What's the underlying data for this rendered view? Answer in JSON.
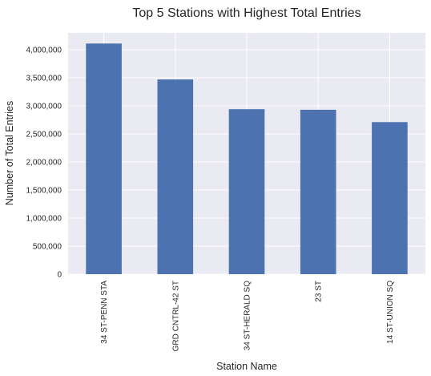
{
  "chart_data": {
    "type": "bar",
    "title": "Top 5 Stations with Highest Total Entries",
    "xlabel": "Station Name",
    "ylabel": "Number of Total Entries",
    "categories": [
      "34 ST-PENN STA",
      "GRD CNTRL-42 ST",
      "34 ST-HERALD SQ",
      "23 ST",
      "14 ST-UNION SQ"
    ],
    "values": [
      4110000,
      3470000,
      2940000,
      2930000,
      2710000
    ],
    "ylim": [
      0,
      4300000
    ],
    "yticks": [
      0,
      500000,
      1000000,
      1500000,
      2000000,
      2500000,
      3000000,
      3500000,
      4000000
    ],
    "ytick_labels": [
      "0",
      "500,000",
      "1,000,000",
      "1,500,000",
      "2,000,000",
      "2,500,000",
      "3,000,000",
      "3,500,000",
      "4,000,000"
    ],
    "grid": true,
    "colors": {
      "bar": "#4c72b0",
      "plot_background": "#eaeaf2",
      "grid": "#ffffff"
    }
  }
}
